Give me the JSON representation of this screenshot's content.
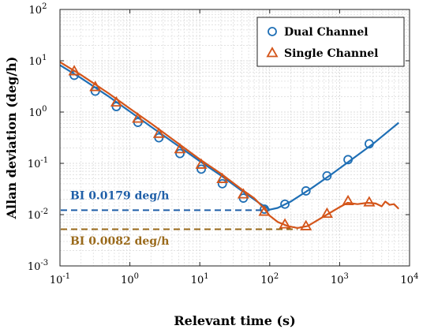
{
  "chart_data": {
    "type": "line",
    "xlabel": "Relevant time (s)",
    "ylabel": "Allan deviation (deg/h)",
    "xscale": "log",
    "yscale": "log",
    "xlim": [
      0.1,
      10000
    ],
    "ylim": [
      0.001,
      100
    ],
    "grid": true,
    "legend_position": "top-right",
    "x_ticks": [
      {
        "value": 0.1,
        "base": "10",
        "exp": "-1"
      },
      {
        "value": 1,
        "base": "10",
        "exp": "0"
      },
      {
        "value": 10,
        "base": "10",
        "exp": "1"
      },
      {
        "value": 100,
        "base": "10",
        "exp": "2"
      },
      {
        "value": 1000,
        "base": "10",
        "exp": "3"
      },
      {
        "value": 10000,
        "base": "10",
        "exp": "4"
      }
    ],
    "y_ticks": [
      {
        "value": 0.001,
        "base": "10",
        "exp": "-3"
      },
      {
        "value": 0.01,
        "base": "10",
        "exp": "-2"
      },
      {
        "value": 0.1,
        "base": "10",
        "exp": "-1"
      },
      {
        "value": 1,
        "base": "10",
        "exp": "0"
      },
      {
        "value": 10,
        "base": "10",
        "exp": "1"
      },
      {
        "value": 100,
        "base": "10",
        "exp": "2"
      }
    ],
    "series": [
      {
        "name": "Dual Channel",
        "color": "#1f6fb5",
        "marker": "circle",
        "line": [
          [
            0.1,
            8.2
          ],
          [
            0.2,
            4.6
          ],
          [
            0.5,
            2.0
          ],
          [
            1,
            1.02
          ],
          [
            2,
            0.52
          ],
          [
            5,
            0.215
          ],
          [
            10,
            0.11
          ],
          [
            20,
            0.058
          ],
          [
            40,
            0.029
          ],
          [
            70,
            0.017
          ],
          [
            100,
            0.0125
          ],
          [
            130,
            0.0135
          ],
          [
            200,
            0.018
          ],
          [
            400,
            0.033
          ],
          [
            800,
            0.064
          ],
          [
            1500,
            0.12
          ],
          [
            3000,
            0.24
          ],
          [
            7000,
            0.62
          ]
        ],
        "markers": [
          [
            0.16,
            5.2
          ],
          [
            0.32,
            2.55
          ],
          [
            0.64,
            1.28
          ],
          [
            1.3,
            0.63
          ],
          [
            2.6,
            0.315
          ],
          [
            5.2,
            0.155
          ],
          [
            10.5,
            0.077
          ],
          [
            21,
            0.04
          ],
          [
            42,
            0.021
          ],
          [
            84,
            0.0128
          ],
          [
            165,
            0.016
          ],
          [
            330,
            0.029
          ],
          [
            660,
            0.057
          ],
          [
            1320,
            0.118
          ],
          [
            2650,
            0.24
          ]
        ]
      },
      {
        "name": "Single Channel",
        "color": "#d4551a",
        "marker": "triangle",
        "line": [
          [
            0.1,
            9.4
          ],
          [
            0.2,
            5.3
          ],
          [
            0.5,
            2.3
          ],
          [
            1,
            1.17
          ],
          [
            2,
            0.6
          ],
          [
            5,
            0.24
          ],
          [
            10,
            0.12
          ],
          [
            20,
            0.063
          ],
          [
            40,
            0.031
          ],
          [
            60,
            0.021
          ],
          [
            80,
            0.014
          ],
          [
            100,
            0.0095
          ],
          [
            130,
            0.0072
          ],
          [
            180,
            0.006
          ],
          [
            250,
            0.0055
          ],
          [
            350,
            0.006
          ],
          [
            500,
            0.008
          ],
          [
            700,
            0.0105
          ],
          [
            1000,
            0.014
          ],
          [
            1300,
            0.017
          ],
          [
            1800,
            0.016
          ],
          [
            2500,
            0.017
          ],
          [
            3300,
            0.0165
          ],
          [
            4000,
            0.0145
          ],
          [
            4500,
            0.018
          ],
          [
            5200,
            0.0155
          ],
          [
            6000,
            0.016
          ],
          [
            7000,
            0.013
          ]
        ],
        "markers": [
          [
            0.16,
            6.3
          ],
          [
            0.32,
            3.1
          ],
          [
            0.64,
            1.55
          ],
          [
            1.3,
            0.75
          ],
          [
            2.6,
            0.38
          ],
          [
            5.2,
            0.19
          ],
          [
            10.5,
            0.095
          ],
          [
            21,
            0.05
          ],
          [
            42,
            0.025
          ],
          [
            84,
            0.0115
          ],
          [
            165,
            0.0065
          ],
          [
            330,
            0.006
          ],
          [
            660,
            0.0105
          ],
          [
            1320,
            0.0185
          ],
          [
            2650,
            0.0175
          ]
        ]
      }
    ],
    "reference_lines": [
      {
        "value": 0.0122,
        "x_end": 100,
        "color": "#1f5fa8",
        "label": "BI 0.0179 deg/h",
        "label_x": 0.14,
        "label_y": 0.02
      },
      {
        "value": 0.0052,
        "x_end": 250,
        "color": "#9a6a1b",
        "label": "BI 0.0082 deg/h",
        "label_x": 0.14,
        "label_y": 0.0026
      }
    ]
  }
}
